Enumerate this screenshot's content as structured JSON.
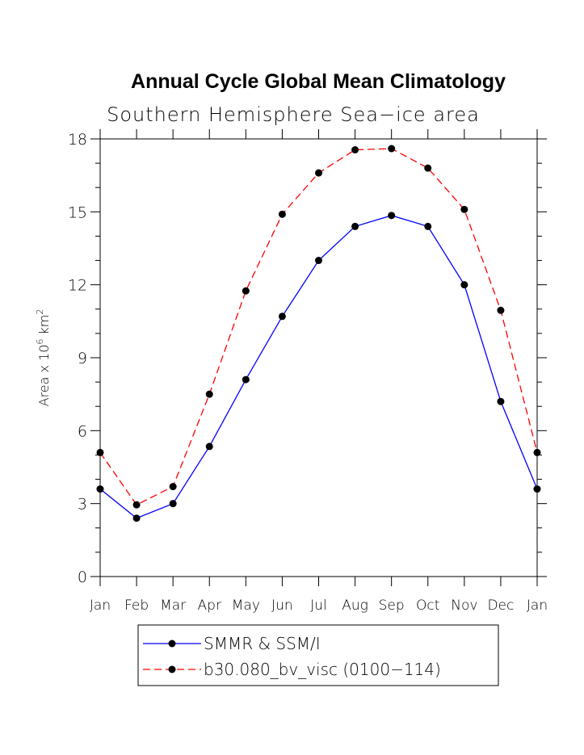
{
  "title": "Annual Cycle Global Mean Climatology",
  "subtitle": "Southern Hemisphere Sea−ice area",
  "chart_data": {
    "type": "line",
    "categories": [
      "Jan",
      "Feb",
      "Mar",
      "Apr",
      "May",
      "Jun",
      "Jul",
      "Aug",
      "Sep",
      "Oct",
      "Nov",
      "Dec",
      "Jan"
    ],
    "ylim": [
      0,
      18
    ],
    "yticks": [
      "0",
      "3",
      "6",
      "9",
      "12",
      "15",
      "18"
    ],
    "ylabel_prefix": "Area x 10",
    "ylabel_exp1": "6",
    "ylabel_mid": " km",
    "ylabel_exp2": "2",
    "grid": false,
    "legend_position": "bottom",
    "series": [
      {
        "name": "SMMR & SSM/I",
        "color": "#0000ff",
        "dashed": false,
        "values": [
          3.6,
          2.4,
          3.0,
          5.35,
          8.1,
          10.7,
          13.0,
          14.4,
          14.85,
          14.4,
          12.0,
          7.2,
          3.6
        ]
      },
      {
        "name": "b30.080_bv_visc (0100−114)",
        "color": "#ff0000",
        "dashed": true,
        "values": [
          5.1,
          2.95,
          3.7,
          7.5,
          11.75,
          14.9,
          16.6,
          17.55,
          17.6,
          16.8,
          15.1,
          10.95,
          5.1
        ]
      }
    ]
  }
}
